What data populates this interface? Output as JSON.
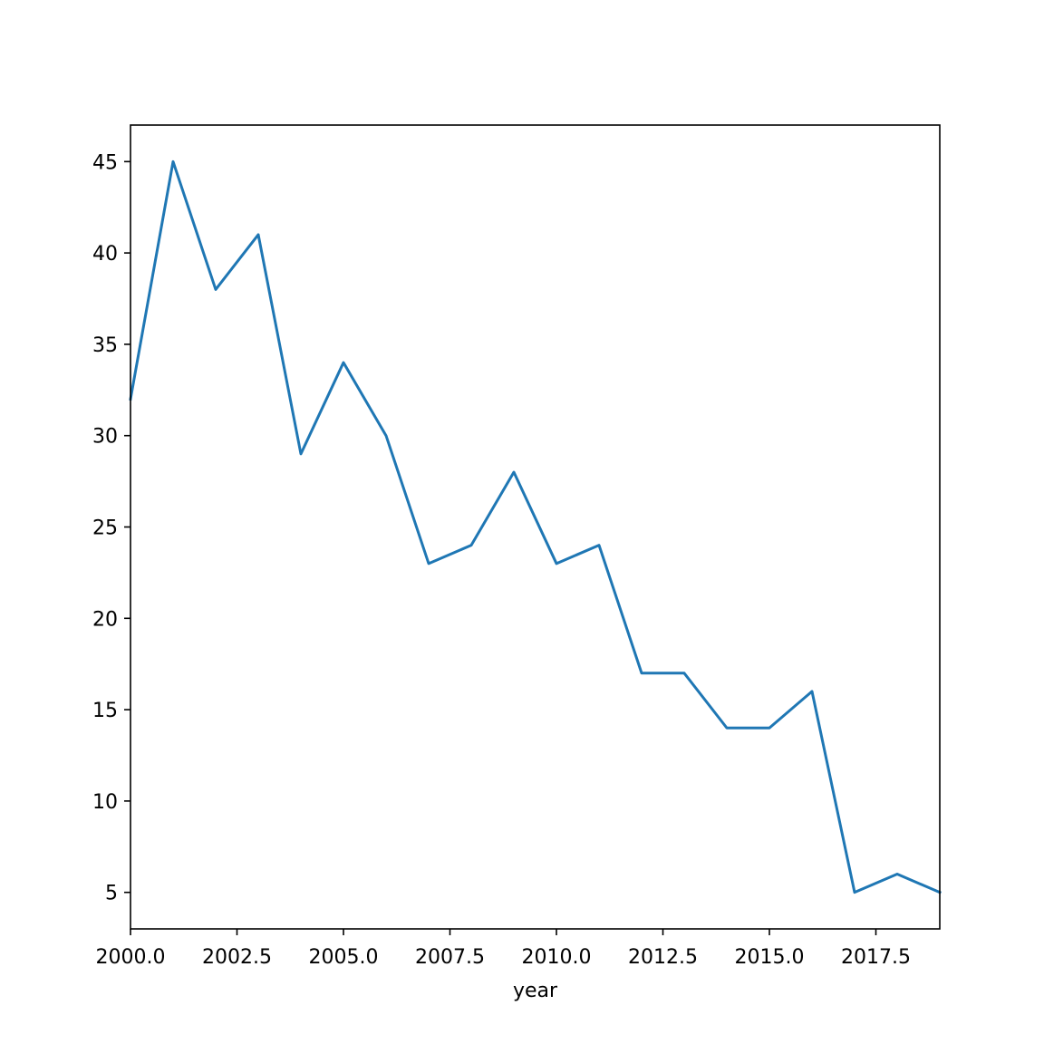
{
  "chart_data": {
    "type": "line",
    "title": "",
    "xlabel": "year",
    "ylabel": "",
    "xlim": [
      2000,
      2019
    ],
    "ylim": [
      3,
      47
    ],
    "grid": false,
    "legend": "none",
    "x_ticks": [
      2000.0,
      2002.5,
      2005.0,
      2007.5,
      2010.0,
      2012.5,
      2015.0,
      2017.5
    ],
    "x_tick_labels": [
      "2000.0",
      "2002.5",
      "2005.0",
      "2007.5",
      "2010.0",
      "2012.5",
      "2015.0",
      "2017.5"
    ],
    "y_ticks": [
      5,
      10,
      15,
      20,
      25,
      30,
      35,
      40,
      45
    ],
    "y_tick_labels": [
      "5",
      "10",
      "15",
      "20",
      "25",
      "30",
      "35",
      "40",
      "45"
    ],
    "series": [
      {
        "color": "#1f77b4",
        "x": [
          2000,
          2001,
          2002,
          2003,
          2004,
          2005,
          2006,
          2007,
          2008,
          2009,
          2010,
          2011,
          2012,
          2013,
          2014,
          2015,
          2016,
          2017,
          2018,
          2019
        ],
        "values": [
          32,
          45,
          38,
          41,
          29,
          34,
          30,
          23,
          24,
          28,
          23,
          24,
          17,
          17,
          14,
          14,
          16,
          5,
          6,
          5
        ]
      }
    ]
  }
}
